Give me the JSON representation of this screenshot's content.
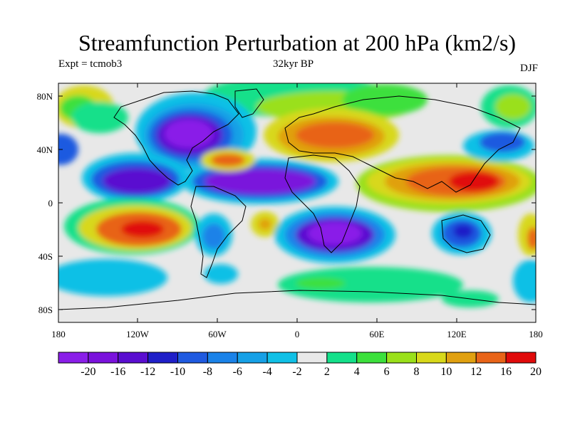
{
  "title": "Streamfunction Perturbation at 200 hPa (km2/s)",
  "subtitle_left": "Expt = tcmob3",
  "subtitle_center": "32kyr BP",
  "subtitle_right": "DJF",
  "lat_ticks": [
    "80N",
    "40N",
    "0",
    "40S",
    "80S"
  ],
  "lon_ticks": [
    "180",
    "120W",
    "60W",
    "0",
    "60E",
    "120E",
    "180"
  ],
  "colorbar": {
    "labels": [
      "-20",
      "-16",
      "-12",
      "-10",
      "-8",
      "-6",
      "-4",
      "-2",
      "2",
      "4",
      "6",
      "8",
      "10",
      "12",
      "16",
      "20"
    ],
    "colors": [
      "#8a1ee8",
      "#7a12dc",
      "#5a0ed0",
      "#1f1fc8",
      "#1f5ae0",
      "#1a82e8",
      "#16a0e6",
      "#10c0e6",
      "#e8e8e8",
      "#14e08a",
      "#3ce03c",
      "#9ae01a",
      "#d8d81a",
      "#e0a010",
      "#e86418",
      "#e00a0a"
    ]
  }
}
